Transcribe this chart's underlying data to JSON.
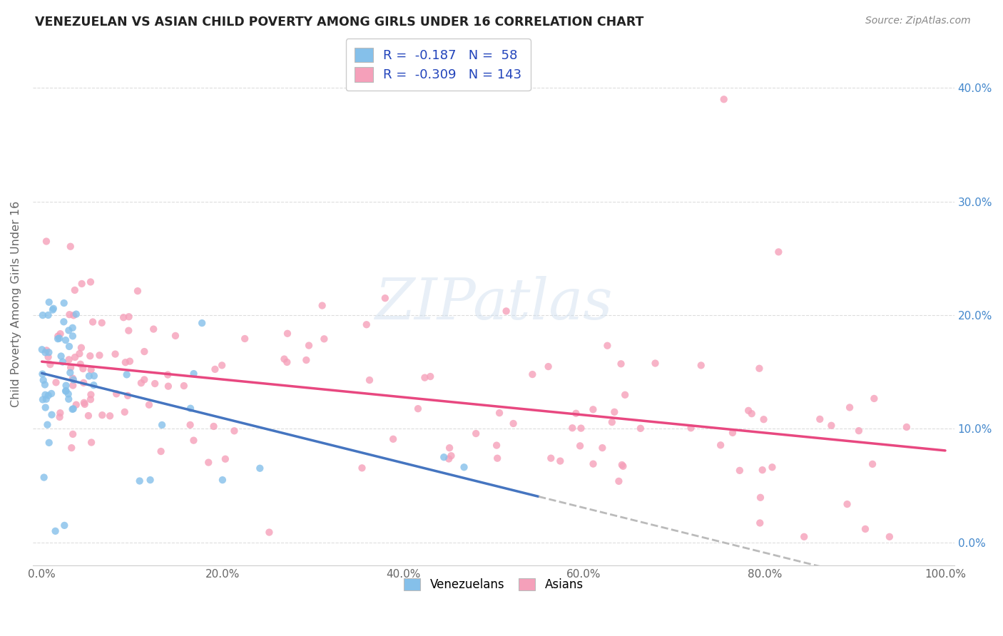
{
  "title": "VENEZUELAN VS ASIAN CHILD POVERTY AMONG GIRLS UNDER 16 CORRELATION CHART",
  "source": "Source: ZipAtlas.com",
  "ylabel": "Child Poverty Among Girls Under 16",
  "xlim": [
    -0.01,
    1.01
  ],
  "ylim": [
    -0.02,
    0.44
  ],
  "xticks": [
    0.0,
    0.2,
    0.4,
    0.6,
    0.8,
    1.0
  ],
  "xticklabels": [
    "0.0%",
    "20.0%",
    "40.0%",
    "60.0%",
    "80.0%",
    "100.0%"
  ],
  "yticks": [
    0.0,
    0.1,
    0.2,
    0.3,
    0.4
  ],
  "yticklabels": [
    "0.0%",
    "10.0%",
    "20.0%",
    "30.0%",
    "40.0%"
  ],
  "venezuelan_color": "#85C0EA",
  "asian_color": "#F5A0BA",
  "venezuelan_line_color": "#4575C0",
  "asian_line_color": "#E84880",
  "trend_ext_color": "#BBBBBB",
  "legend_label_venezuelan": "R =  -0.187   N =  58",
  "legend_label_asian": "R =  -0.309   N = 143",
  "legend_venezuelans": "Venezuelans",
  "legend_asians": "Asians",
  "watermark": "ZIPatlas",
  "background_color": "#FFFFFF",
  "tick_color": "#4488CC",
  "label_color": "#666666",
  "figsize": [
    14.06,
    8.92
  ],
  "dpi": 100,
  "ven_intercept": 0.158,
  "ven_slope": -0.11,
  "asian_intercept": 0.155,
  "asian_slope": -0.075
}
